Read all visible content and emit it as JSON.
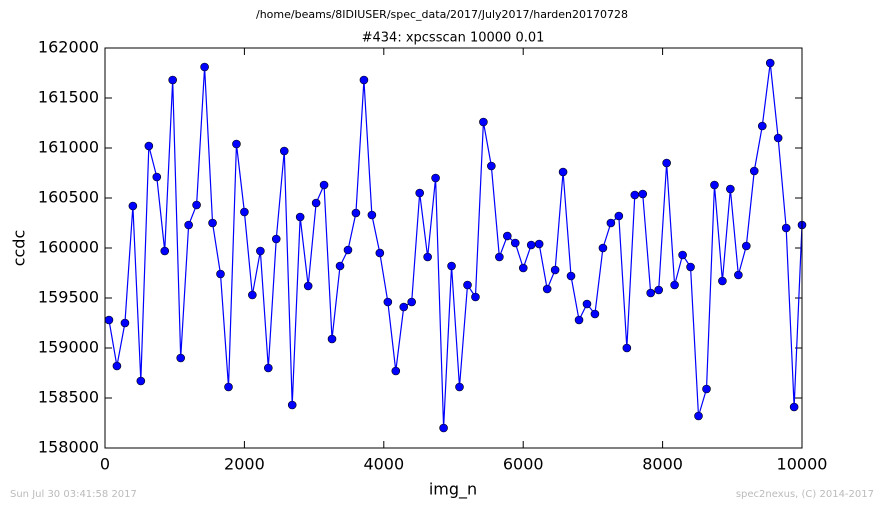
{
  "chart_data": {
    "type": "line",
    "suptitle": "/home/beams/8IDIUSER/spec_data/2017/July2017/harden20170728",
    "title": "#434: xpcsscan 10000 0.01",
    "x_label": "img_n",
    "y_label": "ccdc",
    "footer_left": "Sun Jul 30 03:41:58 2017",
    "footer_right": "spec2nexus, (C) 2014-2017",
    "x": [
      57,
      171,
      286,
      400,
      514,
      629,
      743,
      857,
      971,
      1086,
      1200,
      1314,
      1429,
      1543,
      1657,
      1772,
      1886,
      2000,
      2114,
      2229,
      2343,
      2457,
      2572,
      2686,
      2800,
      2915,
      3029,
      3143,
      3257,
      3372,
      3486,
      3600,
      3715,
      3829,
      3943,
      4058,
      4172,
      4286,
      4400,
      4515,
      4629,
      4743,
      4858,
      4972,
      5086,
      5201,
      5315,
      5429,
      5543,
      5658,
      5772,
      5886,
      6001,
      6115,
      6229,
      6344,
      6458,
      6572,
      6686,
      6801,
      6915,
      7029,
      7144,
      7258,
      7372,
      7487,
      7601,
      7715,
      7829,
      7944,
      8058,
      8172,
      8287,
      8401,
      8515,
      8630,
      8744,
      8858,
      8972,
      9087,
      9201,
      9315,
      9430,
      9544,
      9658,
      9773,
      9887,
      10000
    ],
    "series": [
      {
        "color": "#0000ff",
        "values": [
          159280,
          158820,
          159250,
          160420,
          158670,
          161020,
          160710,
          159970,
          161680,
          158900,
          160230,
          160430,
          161810,
          160250,
          159740,
          158610,
          161040,
          160360,
          159530,
          159970,
          158800,
          160090,
          160970,
          158430,
          160310,
          159620,
          160450,
          160630,
          159090,
          159820,
          159980,
          160350,
          161680,
          160330,
          159950,
          159460,
          158770,
          159410,
          159460,
          160550,
          159910,
          160700,
          158200,
          159820,
          158610,
          159630,
          159510,
          161260,
          160820,
          159910,
          160120,
          160050,
          159800,
          160030,
          160040,
          159590,
          159780,
          160760,
          159720,
          159280,
          159440,
          159340,
          160000,
          160250,
          160320,
          159000,
          160530,
          160540,
          159550,
          159580,
          160850,
          159630,
          159930,
          159810,
          158320,
          158590,
          160630,
          159670,
          160590,
          159730,
          160020,
          160770,
          161220,
          161850,
          161100,
          160200,
          158410,
          160230
        ]
      }
    ],
    "xlim": [
      0,
      10000
    ],
    "xticks": [
      0,
      2000,
      4000,
      6000,
      8000,
      10000
    ],
    "ylim": [
      158000,
      162000
    ],
    "yticks": [
      158000,
      158500,
      159000,
      159500,
      160000,
      160500,
      161000,
      161500,
      162000
    ],
    "grid": false
  }
}
